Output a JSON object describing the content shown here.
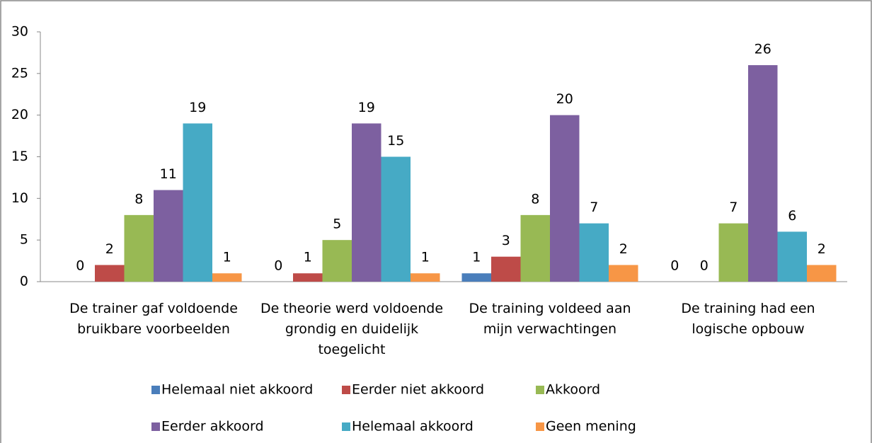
{
  "chart_data": {
    "type": "bar",
    "categories": [
      "De trainer gaf voldoende bruikbare voorbeelden",
      "De theorie werd voldoende grondig en duidelijk toegelicht",
      "De training voldeed aan mijn verwachtingen",
      "De training had een logische opbouw"
    ],
    "series": [
      {
        "name": "Helemaal niet akkoord",
        "color": "#4a7ebb",
        "values": [
          0,
          0,
          1,
          0
        ]
      },
      {
        "name": "Eerder niet akkoord",
        "color": "#be4b48",
        "values": [
          2,
          1,
          3,
          0
        ]
      },
      {
        "name": "Akkoord",
        "color": "#98b954",
        "values": [
          8,
          5,
          8,
          7
        ]
      },
      {
        "name": "Eerder akkoord",
        "color": "#7d60a0",
        "values": [
          11,
          19,
          20,
          26
        ]
      },
      {
        "name": "Helemaal akkoord",
        "color": "#46aac5",
        "values": [
          19,
          15,
          7,
          6
        ]
      },
      {
        "name": "Geen mening",
        "color": "#f79646",
        "values": [
          1,
          1,
          2,
          2
        ]
      }
    ],
    "ylim": [
      0,
      30
    ],
    "yticks": [
      0,
      5,
      10,
      15,
      20,
      25,
      30
    ],
    "grid": false,
    "legend": "bottom"
  }
}
